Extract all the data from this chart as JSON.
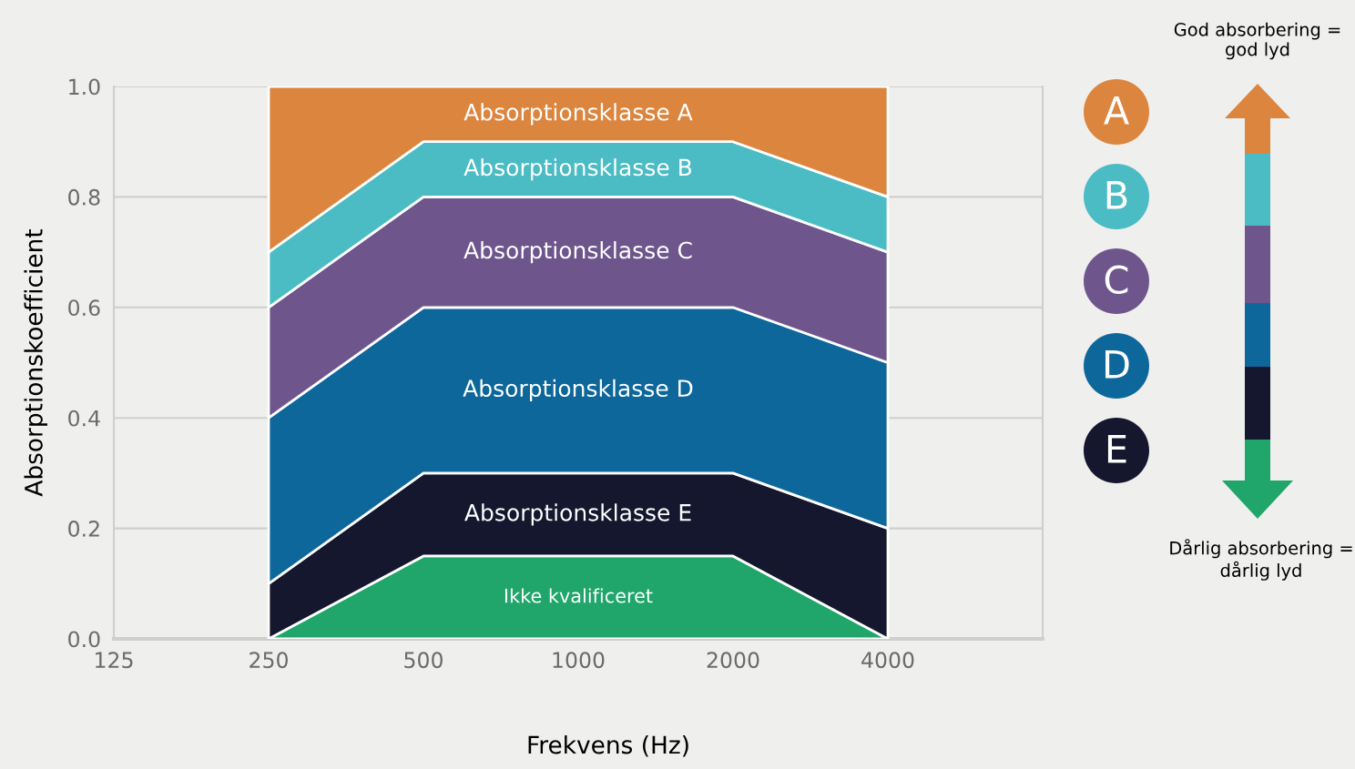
{
  "chart_data": {
    "type": "area",
    "stacked": true,
    "log": "x",
    "xlabel": "Frekvens (Hz)",
    "ylabel": "Absorptionskoefficient",
    "x": [
      250,
      500,
      1000,
      2000,
      4000
    ],
    "xlim": [
      125,
      8000
    ],
    "xticks": [
      125,
      250,
      500,
      1000,
      2000,
      4000
    ],
    "ylim": [
      0,
      1.0
    ],
    "yticks": [
      {
        "value": 0,
        "label": "0.0"
      },
      {
        "value": 0.2,
        "label": "0.2"
      },
      {
        "value": 0.4,
        "label": "0.4"
      },
      {
        "value": 0.6,
        "label": "0.6"
      },
      {
        "value": 0.8,
        "label": "0.8"
      },
      {
        "value": 1.0,
        "label": "1.0"
      }
    ],
    "grid": "y",
    "legend": false,
    "series": [
      {
        "name": "Ikke kvalificeret",
        "color": "#20a66a",
        "values": [
          0,
          0.15,
          0.15,
          0.15,
          0
        ]
      },
      {
        "name": "Absorptionsklasse E",
        "color": "#14172d",
        "values": [
          0.1,
          0.15,
          0.15,
          0.15,
          0.2
        ]
      },
      {
        "name": "Absorptionsklasse D",
        "color": "#0e679b",
        "values": [
          0.3,
          0.3,
          0.3,
          0.3,
          0.3
        ]
      },
      {
        "name": "Absorptionsklasse C",
        "color": "#6e568d",
        "values": [
          0.2,
          0.2,
          0.2,
          0.2,
          0.2
        ]
      },
      {
        "name": "Absorptionsklasse B",
        "color": "#4bbcc4",
        "values": [
          0.1,
          0.1,
          0.1,
          0.1,
          0.1
        ]
      },
      {
        "name": "Absorptionsklasse A",
        "color": "#dc853e",
        "values": [
          0.3,
          0.1,
          0.1,
          0.1,
          0.2
        ]
      }
    ],
    "annotations": [
      "A",
      "B",
      "C",
      "D",
      "E",
      "God absorbering =\ngod lyd",
      "Dårlig absorbering =\ndårlig lyd"
    ]
  }
}
